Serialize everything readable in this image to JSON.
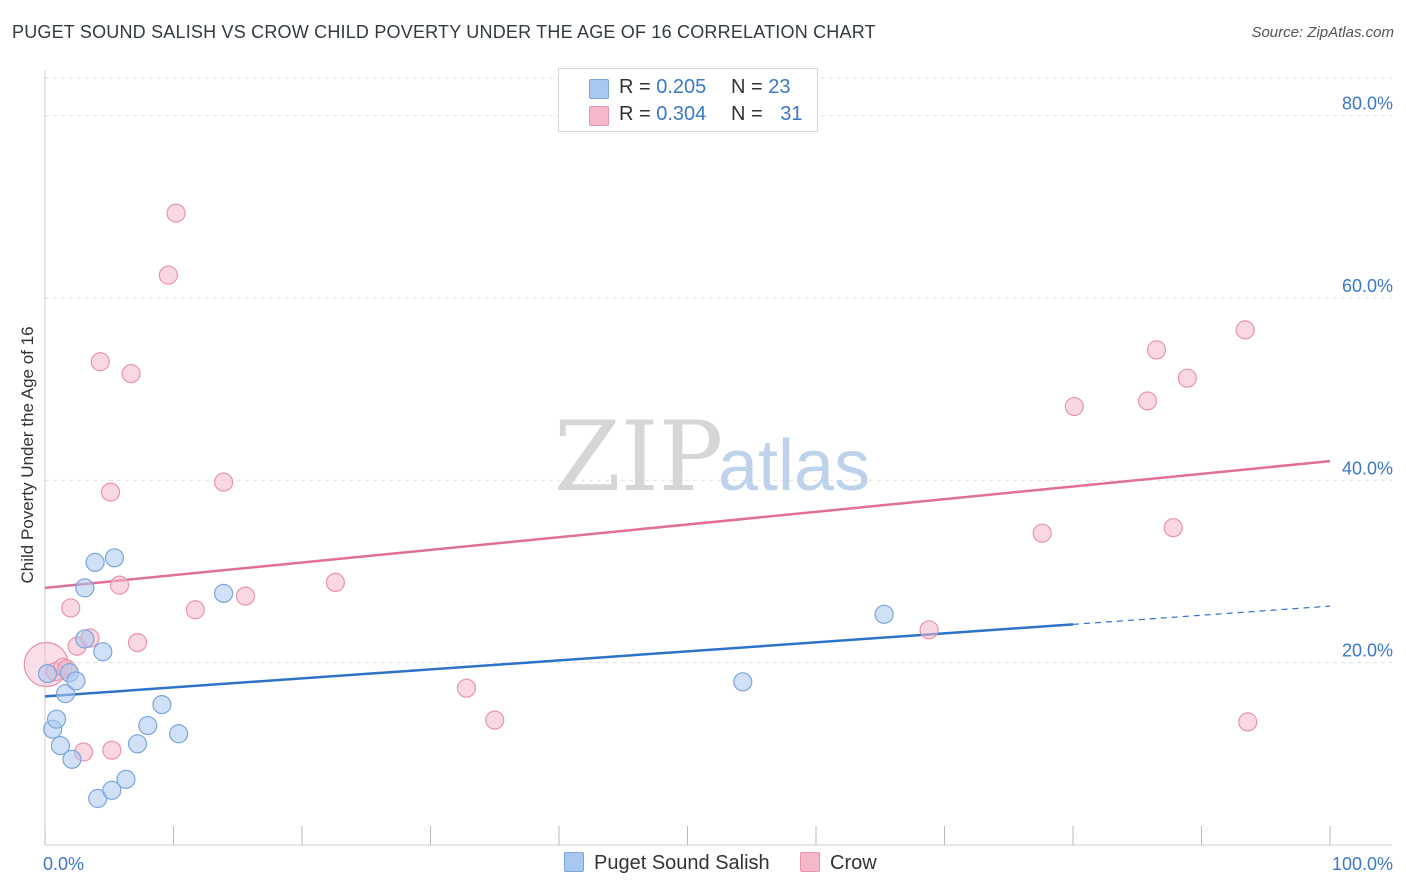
{
  "header": {
    "title": "PUGET SOUND SALISH VS CROW CHILD POVERTY UNDER THE AGE OF 16 CORRELATION CHART",
    "source": "Source: ZipAtlas.com"
  },
  "legend_top": {
    "rows": [
      {
        "r_label": "R = ",
        "r_value": "0.205",
        "n_label": "N = ",
        "n_value": "23",
        "color": "#a9c8f0"
      },
      {
        "r_label": "R = ",
        "r_value": "0.304",
        "n_label": "N = ",
        "n_value": "31",
        "color": "#f5b8cb"
      }
    ]
  },
  "watermark": {
    "zip": "ZIP",
    "atlas": "atlas"
  },
  "colors": {
    "blue_fill": "#a9c8f0",
    "blue_stroke": "#7aa6dc",
    "blue_line": "#2f73c8",
    "pink_fill": "#f5b8cb",
    "pink_stroke": "#ea94ae",
    "pink_line": "#e0709a",
    "grid": "#e0e0e0",
    "tick_text": "#3a78c9"
  },
  "chart_data": {
    "type": "scatter",
    "title": "PUGET SOUND SALISH VS CROW CHILD POVERTY UNDER THE AGE OF 16 CORRELATION CHART",
    "xlabel": "",
    "ylabel": "Child Poverty Under the Age of 16",
    "xlim": [
      0,
      100
    ],
    "ylim": [
      0,
      85
    ],
    "x_tick_labels": [
      {
        "value": 0,
        "label": "0.0%"
      },
      {
        "value": 100,
        "label": "100.0%"
      }
    ],
    "y_ticks": [
      {
        "value": 20,
        "label": "20.0%"
      },
      {
        "value": 40,
        "label": "40.0%"
      },
      {
        "value": 60,
        "label": "60.0%"
      },
      {
        "value": 80,
        "label": "80.0%"
      }
    ],
    "legend_position": "bottom-center",
    "series": [
      {
        "name": "Puget Sound Salish",
        "color": "blue",
        "r": 0.205,
        "n": 23,
        "points": [
          [
            0.2,
            18.8
          ],
          [
            0.6,
            12.7
          ],
          [
            0.9,
            13.8
          ],
          [
            1.2,
            10.9
          ],
          [
            1.6,
            16.6
          ],
          [
            1.9,
            18.9
          ],
          [
            2.1,
            9.4
          ],
          [
            2.4,
            18.0
          ],
          [
            3.1,
            22.6
          ],
          [
            3.1,
            28.2
          ],
          [
            3.9,
            31.0
          ],
          [
            4.1,
            5.1
          ],
          [
            4.5,
            21.2
          ],
          [
            5.2,
            6.0
          ],
          [
            5.4,
            31.5
          ],
          [
            6.3,
            7.2
          ],
          [
            7.2,
            11.1
          ],
          [
            8.0,
            13.1
          ],
          [
            9.1,
            15.4
          ],
          [
            10.4,
            12.2
          ],
          [
            13.9,
            27.6
          ],
          [
            54.3,
            17.9
          ],
          [
            65.3,
            25.3
          ]
        ],
        "trend": {
          "x0": 0,
          "y0": 16.3,
          "x1": 80,
          "y1": 24.2,
          "dash_x1": 100,
          "dash_y1": 26.2
        }
      },
      {
        "name": "Crow",
        "color": "pink",
        "r": 0.304,
        "n": 31,
        "points": [
          [
            0.1,
            19.8
          ],
          [
            0.8,
            19.0
          ],
          [
            1.4,
            19.5
          ],
          [
            1.7,
            19.3
          ],
          [
            2.0,
            26.0
          ],
          [
            2.5,
            21.8
          ],
          [
            3.0,
            10.2
          ],
          [
            3.5,
            22.7
          ],
          [
            4.3,
            53.0
          ],
          [
            5.1,
            38.7
          ],
          [
            5.2,
            10.4
          ],
          [
            5.8,
            28.5
          ],
          [
            6.7,
            51.7
          ],
          [
            7.2,
            22.2
          ],
          [
            9.6,
            62.5
          ],
          [
            10.2,
            69.3
          ],
          [
            11.7,
            25.8
          ],
          [
            13.9,
            39.8
          ],
          [
            15.6,
            27.3
          ],
          [
            22.6,
            28.8
          ],
          [
            32.8,
            17.2
          ],
          [
            35.0,
            13.7
          ],
          [
            68.8,
            23.6
          ],
          [
            77.6,
            34.2
          ],
          [
            80.1,
            48.1
          ],
          [
            85.8,
            48.7
          ],
          [
            86.5,
            54.3
          ],
          [
            87.8,
            34.8
          ],
          [
            88.9,
            51.2
          ],
          [
            93.4,
            56.5
          ],
          [
            93.6,
            13.5
          ]
        ],
        "trend": {
          "x0": 0,
          "y0": 28.2,
          "x1": 100,
          "y1": 42.1
        }
      }
    ]
  }
}
